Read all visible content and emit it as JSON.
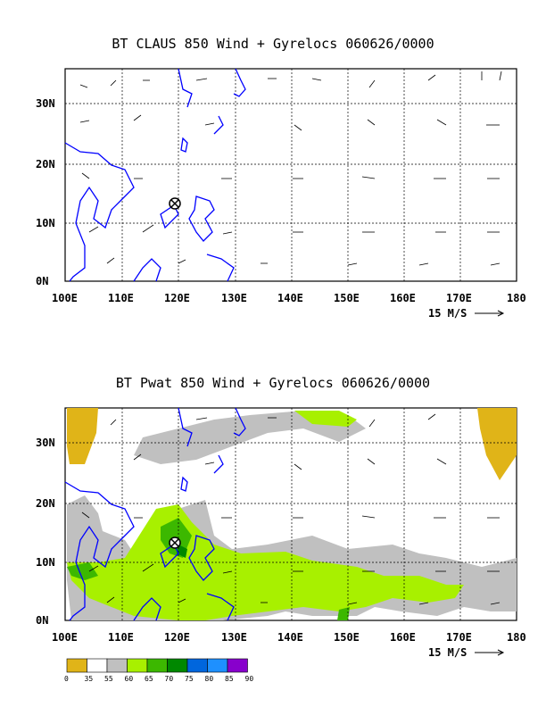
{
  "panel1": {
    "title": "BT CLAUS 850 Wind + Gyrelocs 060626/0000",
    "scale_label": "15 M/S"
  },
  "panel2": {
    "title": "BT Pwat 850 Wind + Gyrelocs 060626/0000",
    "scale_label": "15 M/S"
  },
  "axes": {
    "x_ticks": [
      "100E",
      "110E",
      "120E",
      "130E",
      "140E",
      "150E",
      "160E",
      "170E",
      "180"
    ],
    "y_ticks": [
      "0N",
      "10N",
      "20N",
      "30N"
    ]
  },
  "gyre_marker": {
    "lon": 119.5,
    "lat": 13.5,
    "symbol": "⊗"
  },
  "colorbar": {
    "labels": [
      "0",
      "35",
      "55",
      "60",
      "65",
      "70",
      "75",
      "80",
      "85",
      "90"
    ],
    "colors": [
      "#e0b418",
      "#ffffff",
      "#c0c0c0",
      "#a8f000",
      "#3cb800",
      "#008800",
      "#0066dd",
      "#1e90ff",
      "#8800cc"
    ]
  },
  "colors": {
    "coast": "#0000ff",
    "grid": "#000000"
  }
}
